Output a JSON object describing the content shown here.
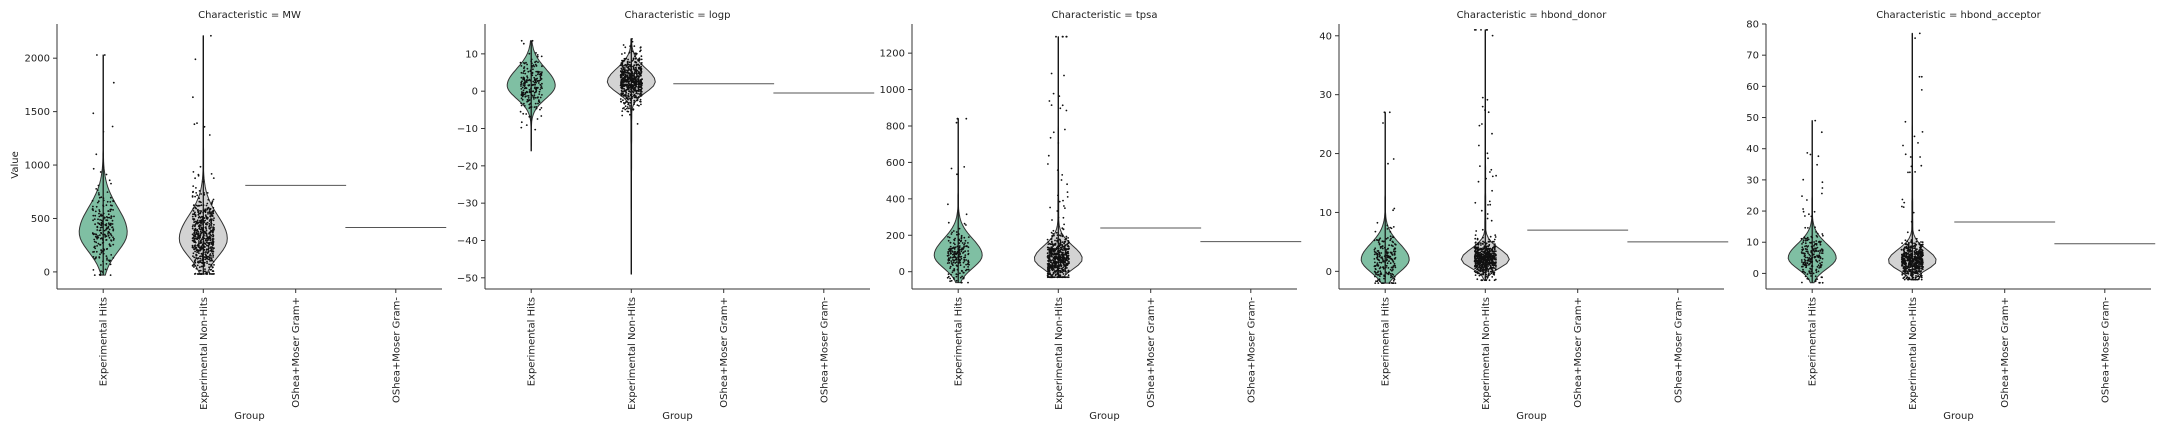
{
  "figure": {
    "xlabel": "Group",
    "ylabel": "Value",
    "groups": [
      "Experimental Hits",
      "Experimental Non-Hits",
      "OShea+Moser Gram+",
      "OShea+Moser Gram-"
    ]
  },
  "colors": {
    "hits_fill": "#7fbfa3",
    "nonhits_fill": "#d3d3d3",
    "outline": "#333333",
    "points": "#111111"
  },
  "chart_data": [
    {
      "type": "violin",
      "title": "Characteristic = MW",
      "ylim": [
        -160,
        2320
      ],
      "yticks": [
        0,
        500,
        1000,
        1500,
        2000
      ],
      "ytick_labels": [
        "0",
        "500",
        "1000",
        "1500",
        "2000"
      ],
      "series": [
        {
          "category": "Experimental Hits",
          "min": -30,
          "max": 2030,
          "median": 370,
          "q1": 260,
          "q3": 520,
          "shape": "violin"
        },
        {
          "category": "Experimental Non-Hits",
          "min": -20,
          "max": 2210,
          "median": 310,
          "q1": 200,
          "q3": 440,
          "shape": "violin"
        },
        {
          "category": "OShea+Moser Gram+",
          "value": 810,
          "shape": "line"
        },
        {
          "category": "OShea+Moser Gram-",
          "value": 415,
          "shape": "line"
        }
      ]
    },
    {
      "type": "violin",
      "title": "Characteristic = logp",
      "ylim": [
        -53,
        18
      ],
      "yticks": [
        -50,
        -40,
        -30,
        -20,
        -10,
        0,
        10
      ],
      "ytick_labels": [
        "−50",
        "−40",
        "−30",
        "−20",
        "−10",
        "0",
        "10"
      ],
      "series": [
        {
          "category": "Experimental Hits",
          "min": -16,
          "max": 13.5,
          "median": 1.5,
          "q1": -1,
          "q3": 4,
          "shape": "violin"
        },
        {
          "category": "Experimental Non-Hits",
          "min": -49,
          "max": 14,
          "median": 2.5,
          "q1": 0.5,
          "q3": 4.5,
          "shape": "violin"
        },
        {
          "category": "OShea+Moser Gram+",
          "value": 2,
          "shape": "line"
        },
        {
          "category": "OShea+Moser Gram-",
          "value": -0.5,
          "shape": "line"
        }
      ]
    },
    {
      "type": "violin",
      "title": "Characteristic = tpsa",
      "ylim": [
        -95,
        1360
      ],
      "yticks": [
        0,
        200,
        400,
        600,
        800,
        1000,
        1200
      ],
      "ytick_labels": [
        "0",
        "200",
        "400",
        "600",
        "800",
        "1000",
        "1200"
      ],
      "series": [
        {
          "category": "Experimental Hits",
          "min": -60,
          "max": 840,
          "median": 90,
          "q1": 50,
          "q3": 150,
          "shape": "violin"
        },
        {
          "category": "Experimental Non-Hits",
          "min": -30,
          "max": 1290,
          "median": 70,
          "q1": 40,
          "q3": 120,
          "shape": "violin"
        },
        {
          "category": "OShea+Moser Gram+",
          "value": 240,
          "shape": "line"
        },
        {
          "category": "OShea+Moser Gram-",
          "value": 165,
          "shape": "line"
        }
      ]
    },
    {
      "type": "violin",
      "title": "Characteristic = hbond_donor",
      "ylim": [
        -3,
        42
      ],
      "yticks": [
        0,
        10,
        20,
        30,
        40
      ],
      "ytick_labels": [
        "0",
        "10",
        "20",
        "30",
        "40"
      ],
      "series": [
        {
          "category": "Experimental Hits",
          "min": -2,
          "max": 27,
          "median": 2,
          "q1": 1,
          "q3": 4,
          "shape": "violin"
        },
        {
          "category": "Experimental Non-Hits",
          "min": -1.5,
          "max": 41,
          "median": 2,
          "q1": 1,
          "q3": 3,
          "shape": "violin"
        },
        {
          "category": "OShea+Moser Gram+",
          "value": 7,
          "shape": "line"
        },
        {
          "category": "OShea+Moser Gram-",
          "value": 5,
          "shape": "line"
        }
      ]
    },
    {
      "type": "violin",
      "title": "Characteristic = hbond_acceptor",
      "ylim": [
        -5,
        80
      ],
      "yticks": [
        0,
        10,
        20,
        30,
        40,
        50,
        60,
        70,
        80
      ],
      "ytick_labels": [
        "0",
        "10",
        "20",
        "30",
        "40",
        "50",
        "60",
        "70",
        "80"
      ],
      "series": [
        {
          "category": "Experimental Hits",
          "min": -3,
          "max": 49,
          "median": 5,
          "q1": 3,
          "q3": 8,
          "shape": "violin"
        },
        {
          "category": "Experimental Non-Hits",
          "min": -2,
          "max": 77,
          "median": 4,
          "q1": 2,
          "q3": 6,
          "shape": "violin"
        },
        {
          "category": "OShea+Moser Gram+",
          "value": 16.5,
          "shape": "line"
        },
        {
          "category": "OShea+Moser Gram-",
          "value": 9.5,
          "shape": "line"
        }
      ]
    }
  ]
}
